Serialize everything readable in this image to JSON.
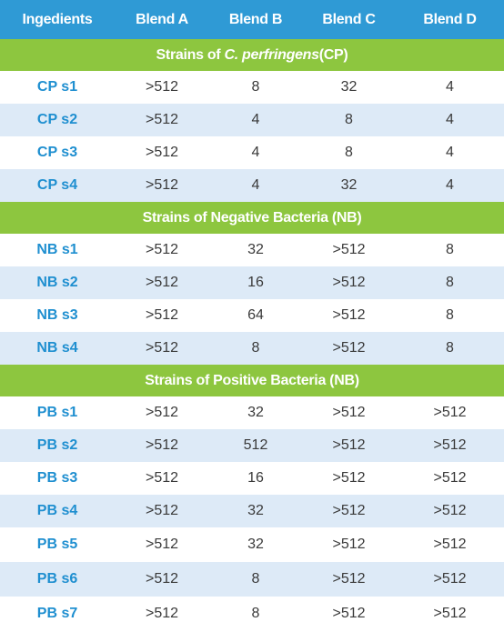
{
  "headers": [
    "Ingedients",
    "Blend A",
    "Blend B",
    "Blend C",
    "Blend D"
  ],
  "sections": [
    {
      "title_pre": "Strains of ",
      "title_italic": "C. perfringens",
      "title_post": "(CP)",
      "rows": [
        {
          "label": "CP s1",
          "values": [
            ">512",
            "8",
            "32",
            "4"
          ]
        },
        {
          "label": "CP s2",
          "values": [
            ">512",
            "4",
            "8",
            "4"
          ]
        },
        {
          "label": "CP s3",
          "values": [
            ">512",
            "4",
            "8",
            "4"
          ]
        },
        {
          "label": "CP s4",
          "values": [
            ">512",
            "4",
            "32",
            "4"
          ]
        }
      ]
    },
    {
      "title_pre": "Strains of Negative Bacteria (NB)",
      "title_italic": "",
      "title_post": "",
      "rows": [
        {
          "label": "NB s1",
          "values": [
            ">512",
            "32",
            ">512",
            "8"
          ]
        },
        {
          "label": "NB s2",
          "values": [
            ">512",
            "16",
            ">512",
            "8"
          ]
        },
        {
          "label": "NB s3",
          "values": [
            ">512",
            "64",
            ">512",
            "8"
          ]
        },
        {
          "label": "NB s4",
          "values": [
            ">512",
            "8",
            ">512",
            "8"
          ]
        }
      ]
    },
    {
      "title_pre": "Strains of Positive Bacteria (NB)",
      "title_italic": "",
      "title_post": "",
      "rows": [
        {
          "label": "PB s1",
          "values": [
            ">512",
            "32",
            ">512",
            ">512"
          ]
        },
        {
          "label": "PB s2",
          "values": [
            ">512",
            "512",
            ">512",
            ">512"
          ]
        },
        {
          "label": "PB s3",
          "values": [
            ">512",
            "16",
            ">512",
            ">512"
          ]
        },
        {
          "label": "PB s4",
          "values": [
            ">512",
            "32",
            ">512",
            ">512"
          ]
        },
        {
          "label": "PB s5",
          "values": [
            ">512",
            "32",
            ">512",
            ">512"
          ]
        },
        {
          "label": "PB s6",
          "values": [
            ">512",
            "8",
            ">512",
            ">512"
          ]
        },
        {
          "label": "PB s7",
          "values": [
            ">512",
            "8",
            ">512",
            ">512"
          ]
        }
      ]
    }
  ],
  "colors": {
    "header_bg": "#2f9ad5",
    "section_bg": "#8dc63f",
    "alt_row_bg": "#ddeaf7",
    "label_text": "#1f8fd0",
    "value_text": "#3a3a3a"
  }
}
